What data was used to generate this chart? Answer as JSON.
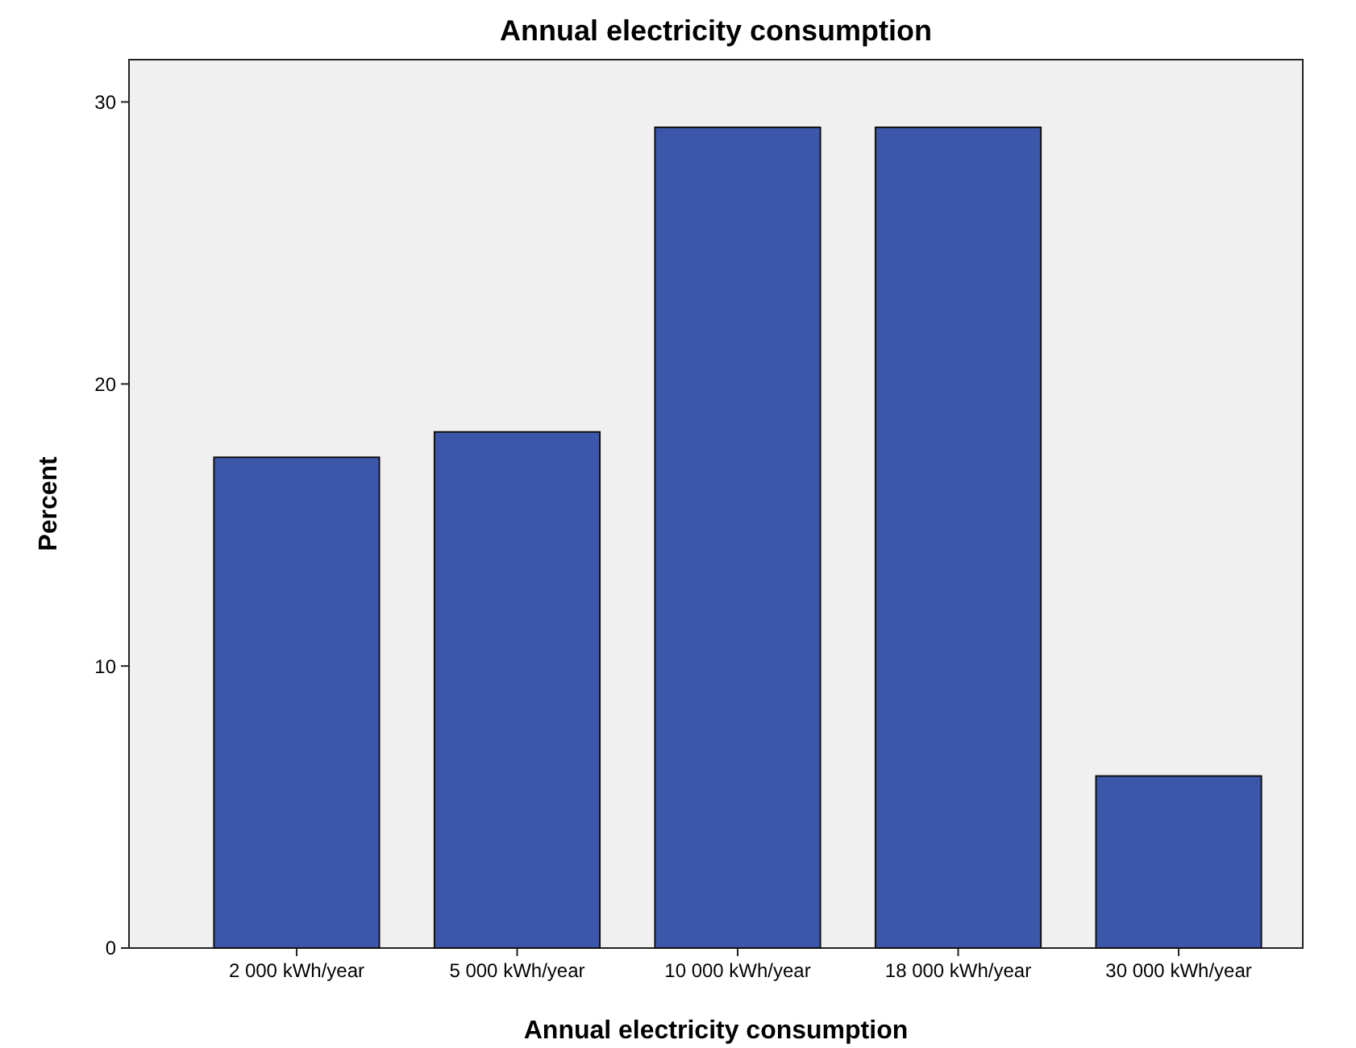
{
  "chart_data": {
    "type": "bar",
    "title": "Annual electricity consumption",
    "xlabel": "Annual electricity consumption",
    "ylabel": "Percent",
    "categories": [
      "2 000 kWh/year",
      "5 000 kWh/year",
      "10 000 kWh/year",
      "18 000 kWh/year",
      "30 000 kWh/year"
    ],
    "values": [
      17.4,
      18.3,
      29.1,
      29.1,
      6.1
    ],
    "color": "#3c56a9",
    "ylim": [
      0,
      31.5
    ],
    "yticks": [
      0,
      10,
      20,
      30
    ],
    "grid": false
  }
}
